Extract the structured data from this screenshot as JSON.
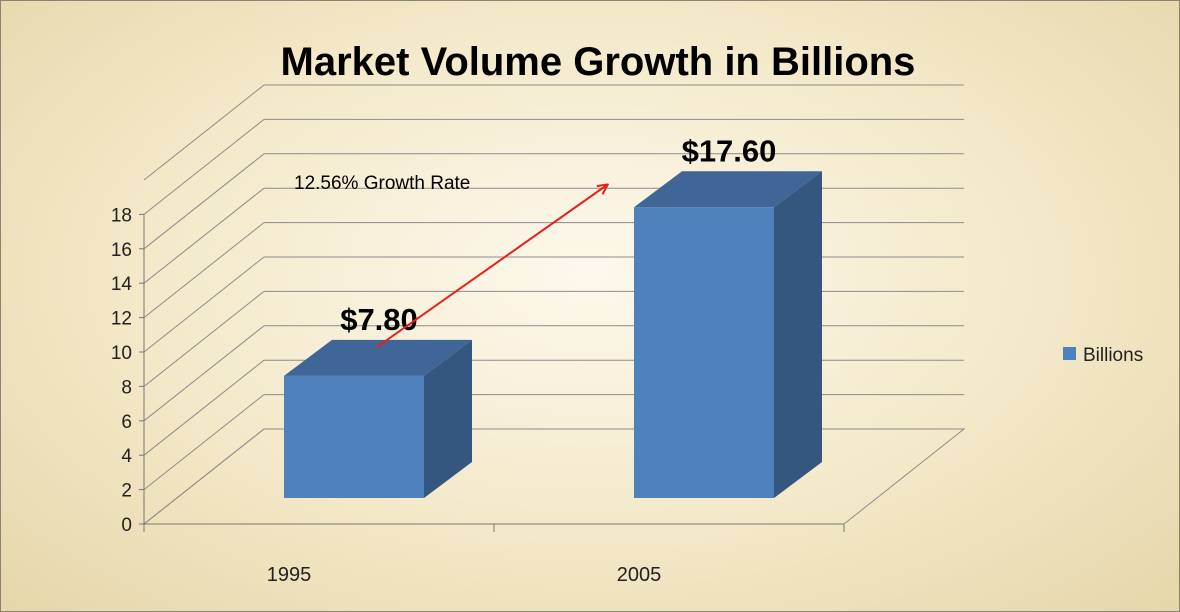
{
  "chart_data": {
    "type": "bar",
    "title": "Market Volume Growth in Billions",
    "categories": [
      "1995",
      "2005"
    ],
    "series": [
      {
        "name": "Billions",
        "values": [
          7.8,
          17.6
        ],
        "color": "#4f81bd"
      }
    ],
    "data_labels": [
      "$7.80",
      "$17.60"
    ],
    "annotation": "12.56% Growth Rate",
    "yticks": [
      "0",
      "2",
      "4",
      "6",
      "8",
      "10",
      "12",
      "14",
      "16",
      "18"
    ],
    "ylim": [
      0,
      18
    ],
    "grid": true,
    "legend": "right",
    "three_d": true,
    "annotation_arrow_color": "#e8201c"
  }
}
